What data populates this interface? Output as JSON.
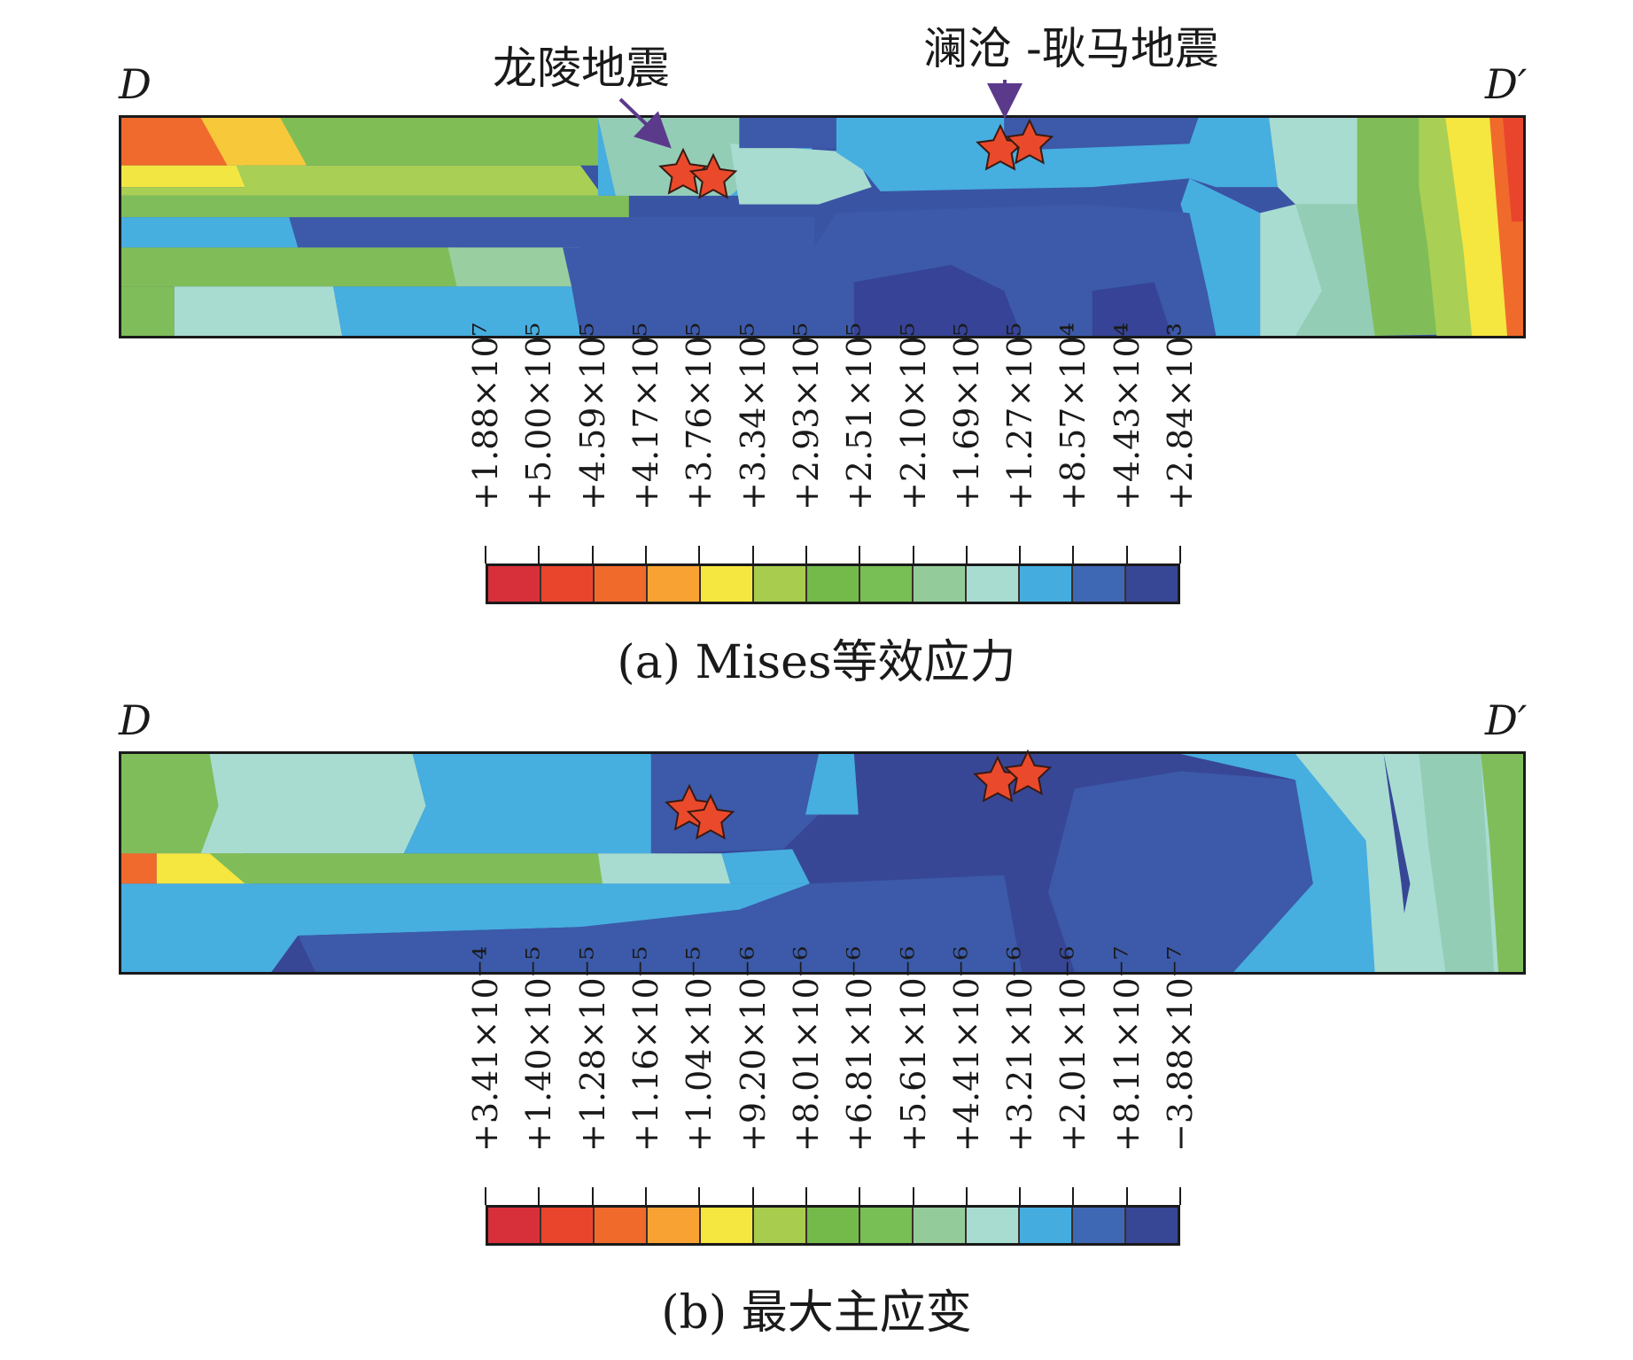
{
  "panel_a": {
    "end_left": "D",
    "end_right": "D′",
    "annotation_left": "龙陵地震",
    "annotation_right": "澜沧 -耿马地震",
    "caption": "(a) Mises等效应力",
    "legend": [
      "+1.88×10⁷",
      "+5.00×10⁵",
      "+4.59×10⁵",
      "+4.17×10⁵",
      "+3.76×10⁵",
      "+3.34×10⁵",
      "+2.93×10⁵",
      "+2.51×10⁵",
      "+2.10×10⁵",
      "+1.69×10⁵",
      "+1.27×10⁵",
      "+8.57×10⁴",
      "+4.43×10⁴",
      "+2.84×10³"
    ]
  },
  "panel_b": {
    "end_left": "D",
    "end_right": "D′",
    "caption": "(b) 最大主应变",
    "legend": [
      "+3.41×10⁻⁴",
      "+1.40×10⁻⁵",
      "+1.28×10⁻⁵",
      "+1.16×10⁻⁵",
      "+1.04×10⁻⁵",
      "+9.20×10⁻⁶",
      "+8.01×10⁻⁶",
      "+6.81×10⁻⁶",
      "+5.61×10⁻⁶",
      "+4.41×10⁻⁶",
      "+3.21×10⁻⁶",
      "+2.01×10⁻⁶",
      "+8.11×10⁻⁷",
      "−3.88×10⁻⁷"
    ]
  },
  "colors": {
    "scale": [
      "#d7303a",
      "#e9452d",
      "#f06a2c",
      "#f7a233",
      "#f6e640",
      "#a7cc4e",
      "#74ba4a",
      "#78bf56",
      "#93cc9a",
      "#a8dcd0",
      "#45ace0",
      "#3f68b4",
      "#374796"
    ]
  }
}
